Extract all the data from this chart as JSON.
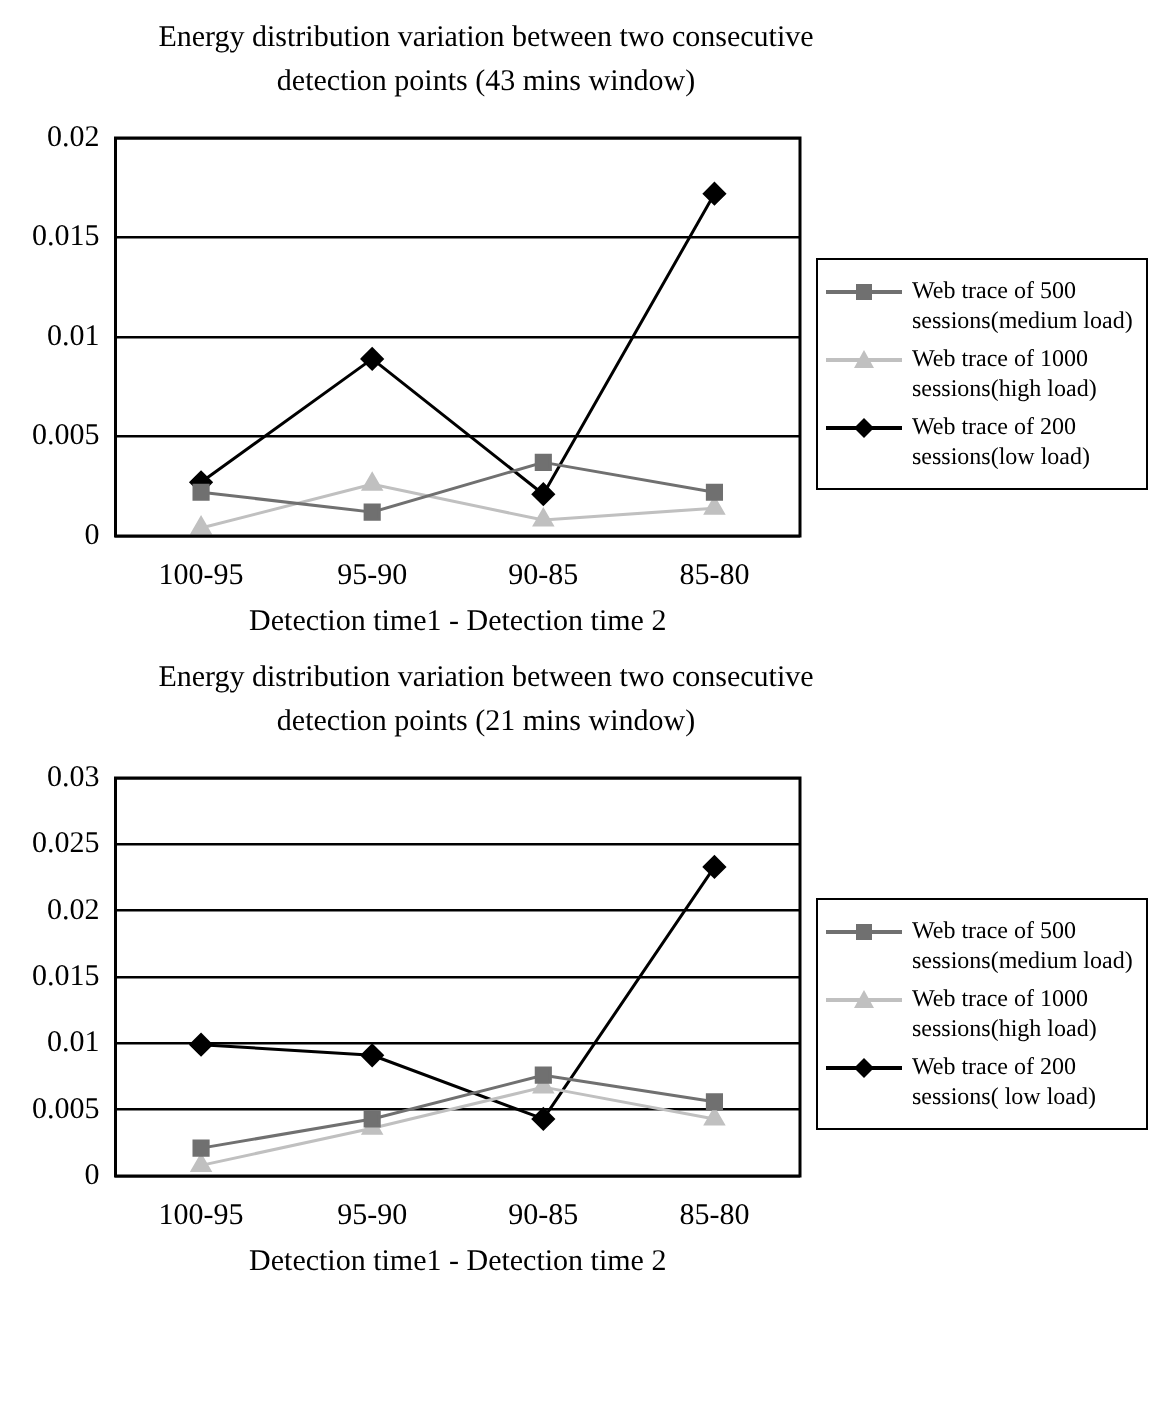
{
  "chart_data": [
    {
      "type": "line",
      "title": "Energy distribution variation between two consecutive detection points (43 mins window)",
      "xlabel": "Detection time1 - Detection time 2",
      "categories": [
        "100-95",
        "95-90",
        "90-85",
        "85-80"
      ],
      "series": [
        {
          "name": "Web trace of 500 sessions(medium load)",
          "color": "#707070",
          "marker": "square",
          "values": [
            0.0022,
            0.0012,
            0.0037,
            0.0022
          ]
        },
        {
          "name": "Web trace of 1000 sessions(high load)",
          "color": "#c0c0c0",
          "marker": "triangle",
          "values": [
            0.0004,
            0.0026,
            0.0008,
            0.0014
          ]
        },
        {
          "name": "Web trace of 200 sessions(low load)",
          "color": "#000000",
          "marker": "diamond",
          "values": [
            0.0027,
            0.0089,
            0.0021,
            0.0172
          ]
        }
      ],
      "ylim": [
        0,
        0.02
      ],
      "yticks": [
        0,
        0.005,
        0.01,
        0.015,
        0.02
      ],
      "grid": "y",
      "legend": "right"
    },
    {
      "type": "line",
      "title": "Energy distribution variation between two consecutive detection points (21 mins window)",
      "xlabel": "Detection time1 - Detection time 2",
      "categories": [
        "100-95",
        "95-90",
        "90-85",
        "85-80"
      ],
      "series": [
        {
          "name": "Web trace of 500 sessions(medium load)",
          "color": "#707070",
          "marker": "square",
          "values": [
            0.0021,
            0.0043,
            0.0076,
            0.0056
          ]
        },
        {
          "name": "Web trace of 1000 sessions(high load)",
          "color": "#c0c0c0",
          "marker": "triangle",
          "values": [
            0.0008,
            0.0036,
            0.0067,
            0.0043
          ]
        },
        {
          "name": "Web trace of 200 sessions( low load)",
          "color": "#000000",
          "marker": "diamond",
          "values": [
            0.0099,
            0.0091,
            0.0043,
            0.0233
          ]
        }
      ],
      "ylim": [
        0,
        0.03
      ],
      "yticks": [
        0,
        0.005,
        0.01,
        0.015,
        0.02,
        0.025,
        0.03
      ],
      "grid": "y",
      "legend": "right"
    }
  ]
}
